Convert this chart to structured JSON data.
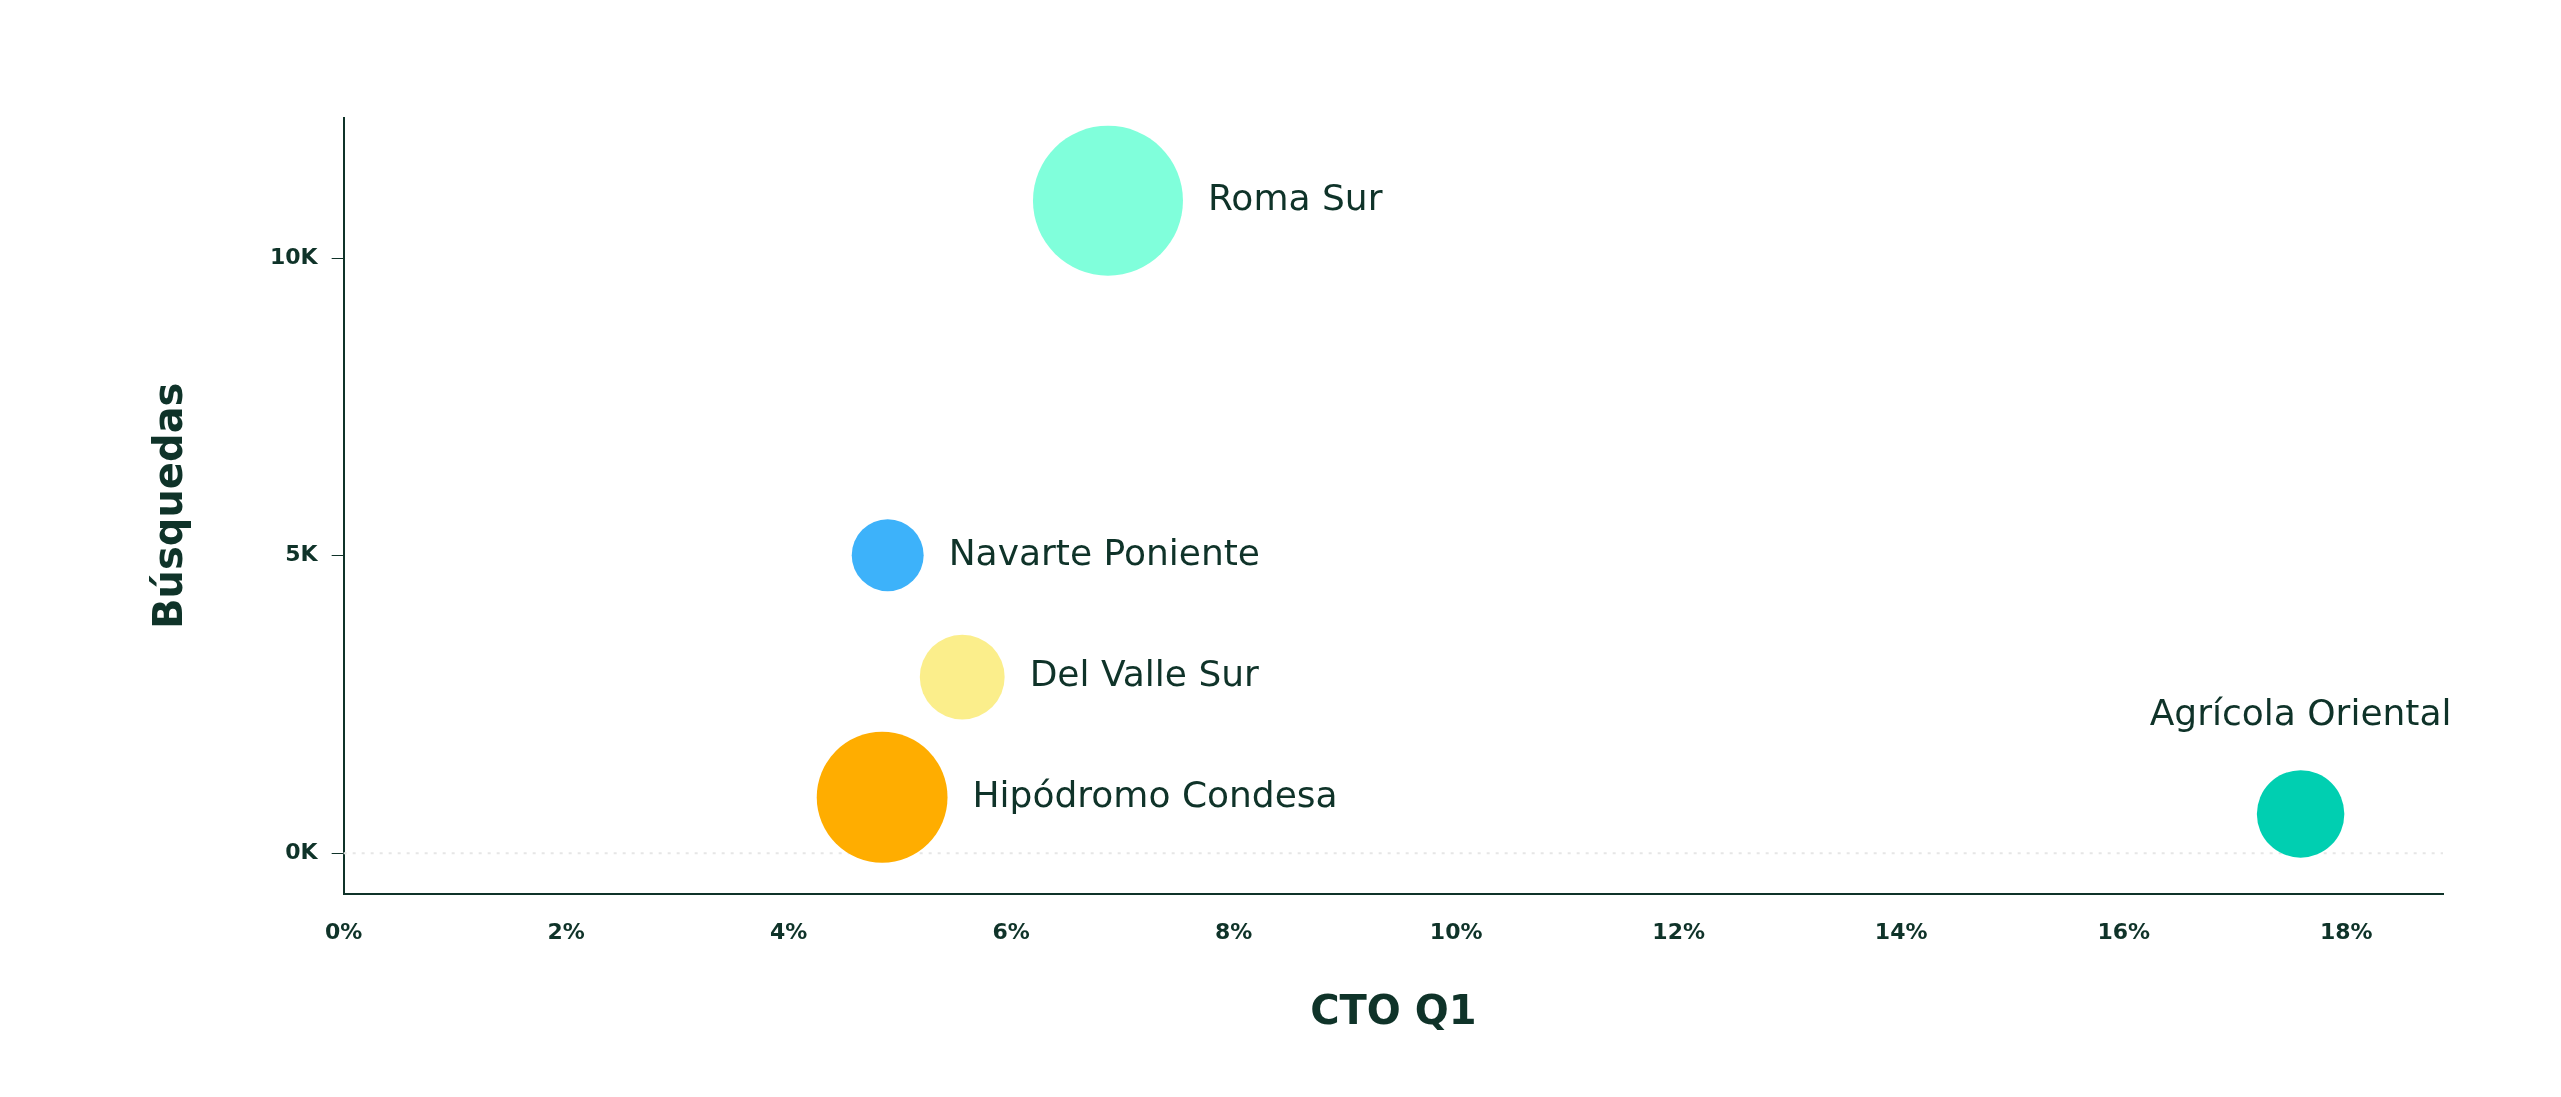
{
  "chart_data": {
    "type": "bubble",
    "xlabel": "CTO Q1",
    "ylabel": "Búsquedas",
    "xlim": [
      0,
      18.87
    ],
    "ylim": [
      -0.68,
      12.36
    ],
    "xticks": [
      {
        "value": 0,
        "label": "0%"
      },
      {
        "value": 2,
        "label": "2%"
      },
      {
        "value": 4,
        "label": "4%"
      },
      {
        "value": 6,
        "label": "6%"
      },
      {
        "value": 8,
        "label": "8%"
      },
      {
        "value": 10,
        "label": "10%"
      },
      {
        "value": 12,
        "label": "12%"
      },
      {
        "value": 14,
        "label": "14%"
      },
      {
        "value": 16,
        "label": "16%"
      },
      {
        "value": 18,
        "label": "18%"
      }
    ],
    "yticks": [
      {
        "value": 0,
        "label": "0K"
      },
      {
        "value": 5,
        "label": "5K"
      },
      {
        "value": 10,
        "label": "10K"
      }
    ],
    "ref_lines": [
      {
        "axis": "y",
        "value": 0,
        "color": "#e6e6e6",
        "line_style": "dotted"
      }
    ],
    "series": [
      {
        "name": "Roma Sur",
        "color": "#80ffdb",
        "x": [
          6.87
        ],
        "values": [
          10.97
        ],
        "sizes": [
          1
        ]
      },
      {
        "name": "Navarte Poniente",
        "color": "#3db2fa",
        "x": [
          4.89
        ],
        "values": [
          5.01
        ],
        "sizes": [
          0.23
        ]
      },
      {
        "name": "Del Valle Sur",
        "color": "#fbee8b",
        "x": [
          5.56
        ],
        "values": [
          2.96
        ],
        "sizes": [
          0.32
        ]
      },
      {
        "name": "Hipódromo Condesa",
        "color": "#ffad00",
        "x": [
          4.84
        ],
        "values": [
          0.94
        ],
        "sizes": [
          0.76
        ]
      },
      {
        "name": "Agrícola Oriental",
        "color": "#00cfb1",
        "x": [
          17.59
        ],
        "values": [
          0.66
        ],
        "sizes": [
          0.34
        ]
      }
    ]
  }
}
